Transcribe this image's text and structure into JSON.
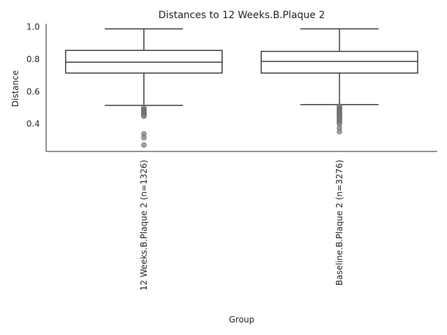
{
  "chart_data": {
    "type": "box",
    "title": "Distances to 12 Weeks.B.Plaque 2",
    "xlabel": "Group",
    "ylabel": "Distance",
    "ylim": [
      0.23,
      1.02
    ],
    "yticks": [
      0.4,
      0.6,
      0.8,
      1.0
    ],
    "ytick_labels": [
      "0.4",
      "0.6",
      "0.8",
      "1.0"
    ],
    "grid": false,
    "colors": {
      "box_edge": "#3a3a3a",
      "box_fill": "#ffffff",
      "outlier": "#7f7f7f"
    },
    "categories": [
      "12 Weeks.B.Plaque 2 (n=1326)",
      "Baseline.B.Plaque 2 (n=3276)"
    ],
    "boxes": [
      {
        "label": "12 Weeks.B.Plaque 2 (n=1326)",
        "whisker_low": 0.515,
        "q1": 0.715,
        "median": 0.782,
        "q3": 0.855,
        "whisker_high": 0.988,
        "outliers": [
          0.5,
          0.49,
          0.482,
          0.475,
          0.468,
          0.462,
          0.455,
          0.448,
          0.338,
          0.315,
          0.27
        ]
      },
      {
        "label": "Baseline.B.Plaque 2 (n=3276)",
        "whisker_low": 0.52,
        "q1": 0.715,
        "median": 0.787,
        "q3": 0.849,
        "whisker_high": 0.988,
        "outliers": [
          0.51,
          0.5,
          0.492,
          0.485,
          0.478,
          0.47,
          0.462,
          0.455,
          0.446,
          0.438,
          0.43,
          0.42,
          0.41,
          0.4,
          0.375,
          0.352
        ]
      }
    ]
  }
}
